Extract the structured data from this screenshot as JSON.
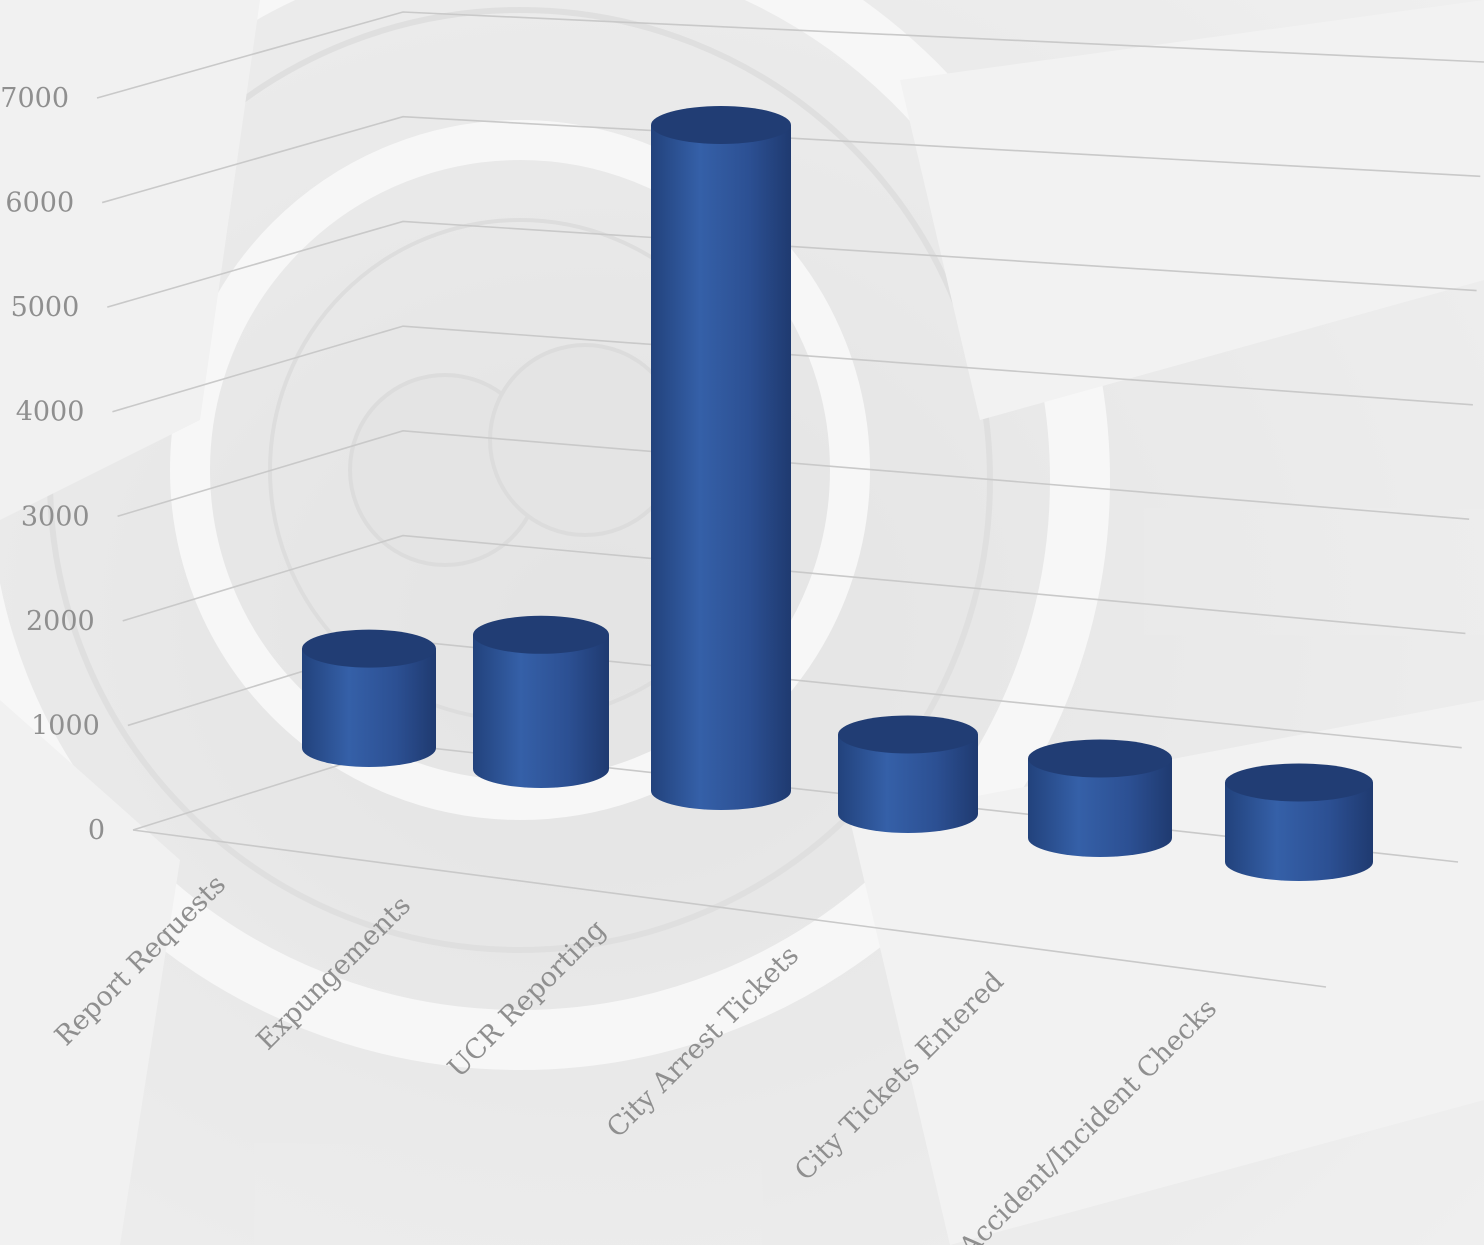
{
  "chart_data": {
    "type": "bar",
    "style": "3d-cylinder",
    "categories": [
      "Report Requests",
      "Expungements",
      "UCR Reporting",
      "City Arrest Tickets",
      "City Tickets Entered",
      "Accident/Incident Checks"
    ],
    "series": [
      {
        "values": [
          1000,
          1350,
          6700,
          800,
          800,
          800
        ]
      }
    ],
    "y_ticks": [
      "0",
      "1000",
      "2000",
      "3000",
      "4000",
      "5000",
      "6000",
      "7000"
    ],
    "ylim": [
      0,
      7000
    ],
    "grid": true,
    "legend": "none",
    "bar_color": "#2e5395",
    "bar_top_color": "#213d74",
    "background": "faded police department seal watermark"
  }
}
